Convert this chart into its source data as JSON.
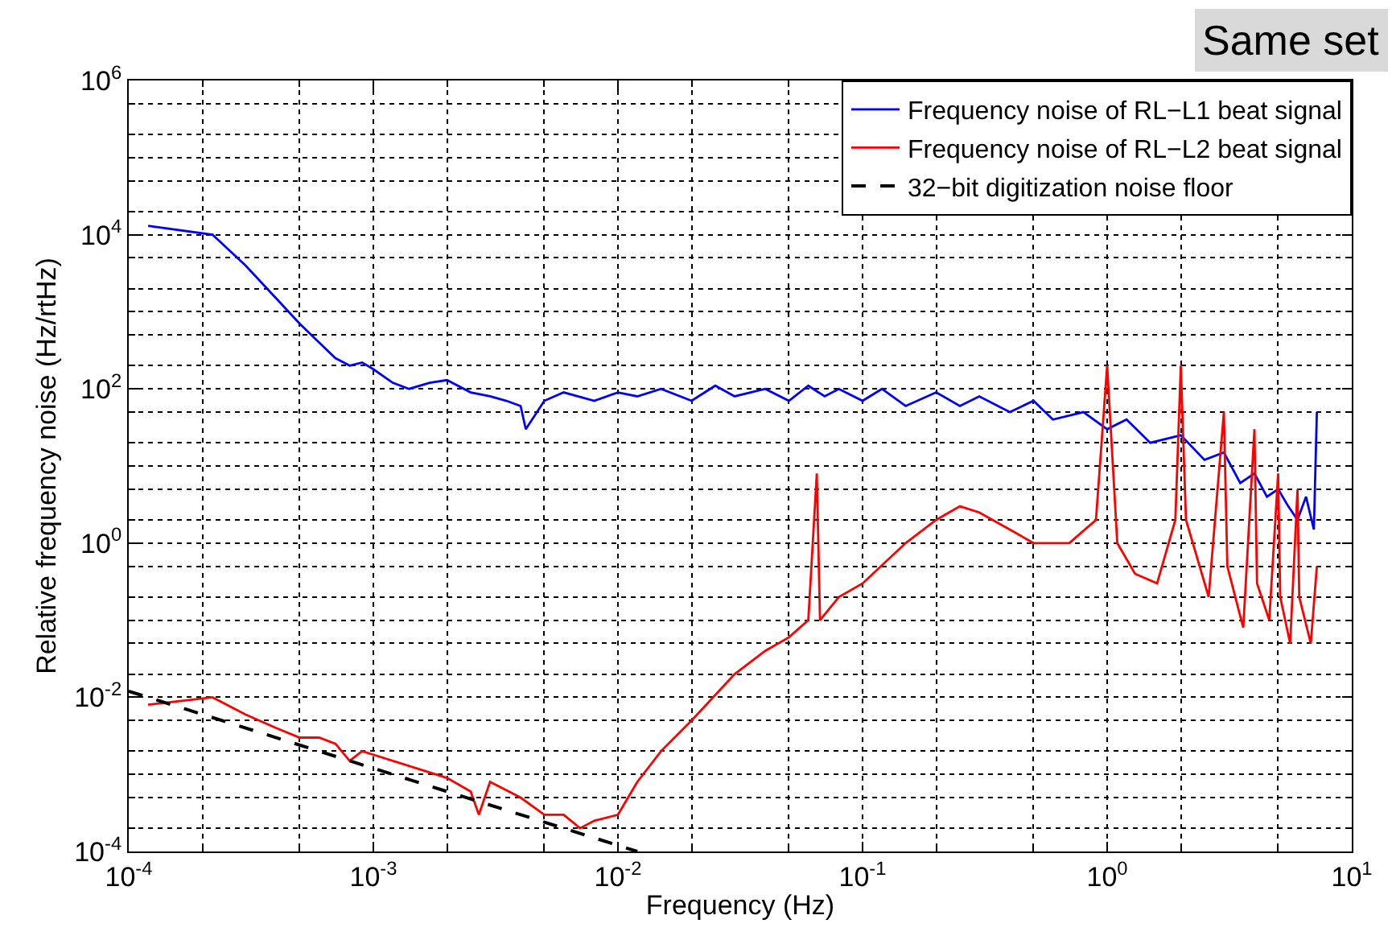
{
  "chart_data": {
    "type": "line",
    "xlabel": "Frequency (Hz)",
    "ylabel": "Relative frequency noise (Hz/rtHz)",
    "log": "xy",
    "grid": true,
    "legend": "top right",
    "line_style": "solid",
    "marker": "none",
    "xlim": [
      0.0001,
      10
    ],
    "ylim": [
      0.0001,
      1000000
    ],
    "xticks": [
      {
        "value": 0.0001,
        "label": "10$^{-4}$"
      },
      {
        "value": 0.001,
        "label": "10$^{-3}$"
      },
      {
        "value": 0.01,
        "label": "10$^{-2}$"
      },
      {
        "value": 0.1,
        "label": "10$^{-1}$"
      },
      {
        "value": 1,
        "label": "10$^{0}$"
      },
      {
        "value": 10,
        "label": "10$^{1}$"
      }
    ],
    "yticks": [
      {
        "value": 0.0001,
        "label": "10$^{-4}$"
      },
      {
        "value": 0.01,
        "label": "10$^{-2}$"
      },
      {
        "value": 1,
        "label": "10$^{0}$"
      },
      {
        "value": 100,
        "label": "10$^{2}$"
      },
      {
        "value": 10000,
        "label": "10$^{4}$"
      },
      {
        "value": 1000000,
        "label": "10$^{6}$"
      }
    ],
    "annotations": [
      "Same set"
    ],
    "series": [
      {
        "name": "Frequency noise of RL−L1 beat signal",
        "color": "#0000ff",
        "x": [
          0.00012,
          0.00022,
          0.0003,
          0.0004,
          0.0005,
          0.0006,
          0.0007,
          0.0008,
          0.0009,
          0.001,
          0.0012,
          0.0014,
          0.0017,
          0.002,
          0.0025,
          0.003,
          0.0035,
          0.004,
          0.0042,
          0.005,
          0.006,
          0.008,
          0.01,
          0.012,
          0.015,
          0.02,
          0.025,
          0.03,
          0.04,
          0.05,
          0.06,
          0.07,
          0.08,
          0.1,
          0.12,
          0.15,
          0.2,
          0.25,
          0.3,
          0.4,
          0.5,
          0.6,
          0.8,
          1,
          1.2,
          1.5,
          2,
          2.5,
          3,
          3.5,
          4,
          4.5,
          5,
          5.5,
          6,
          6.5,
          7,
          7.2
        ],
        "values": [
          13000,
          10000,
          4000,
          1500,
          700,
          400,
          250,
          200,
          220,
          180,
          120,
          100,
          120,
          130,
          90,
          80,
          70,
          60,
          30,
          70,
          90,
          70,
          90,
          80,
          100,
          70,
          110,
          80,
          100,
          70,
          110,
          80,
          100,
          70,
          100,
          60,
          90,
          60,
          80,
          50,
          70,
          40,
          50,
          30,
          40,
          20,
          25,
          12,
          15,
          6,
          8,
          4,
          5,
          3,
          2,
          4,
          1.5,
          50
        ]
      },
      {
        "name": "Frequency noise of RL−L2 beat signal",
        "color": "#ff0000",
        "x": [
          0.00012,
          0.00022,
          0.0003,
          0.0004,
          0.0005,
          0.0006,
          0.0007,
          0.0008,
          0.0009,
          0.001,
          0.0015,
          0.002,
          0.0025,
          0.0027,
          0.003,
          0.004,
          0.005,
          0.006,
          0.007,
          0.008,
          0.01,
          0.012,
          0.015,
          0.02,
          0.03,
          0.04,
          0.05,
          0.06,
          0.065,
          0.067,
          0.08,
          0.1,
          0.15,
          0.2,
          0.25,
          0.3,
          0.4,
          0.5,
          0.7,
          0.9,
          1,
          1.1,
          1.3,
          1.6,
          1.9,
          2,
          2.1,
          2.6,
          3,
          3.1,
          3.6,
          4,
          4.1,
          4.6,
          5,
          5.1,
          5.6,
          6,
          6.1,
          6.8,
          7.2
        ],
        "values": [
          0.008,
          0.01,
          0.006,
          0.004,
          0.003,
          0.003,
          0.0025,
          0.0015,
          0.002,
          0.0018,
          0.0012,
          0.0009,
          0.0006,
          0.0003,
          0.0008,
          0.0005,
          0.0003,
          0.0003,
          0.0002,
          0.00025,
          0.0003,
          0.0008,
          0.002,
          0.005,
          0.02,
          0.04,
          0.06,
          0.1,
          8,
          0.1,
          0.2,
          0.3,
          1,
          2,
          3,
          2.5,
          1.5,
          1,
          1,
          2,
          200,
          1,
          0.4,
          0.3,
          2,
          200,
          2,
          0.2,
          50,
          0.5,
          0.08,
          30,
          0.3,
          0.1,
          8,
          0.2,
          0.05,
          5,
          0.2,
          0.05,
          0.5
        ]
      },
      {
        "name": "32−bit digitization noise floor",
        "color": "#000000",
        "line_style": "dashed",
        "x": [
          0.0001,
          0.012
        ],
        "values": [
          0.012,
          0.0001
        ]
      }
    ]
  }
}
